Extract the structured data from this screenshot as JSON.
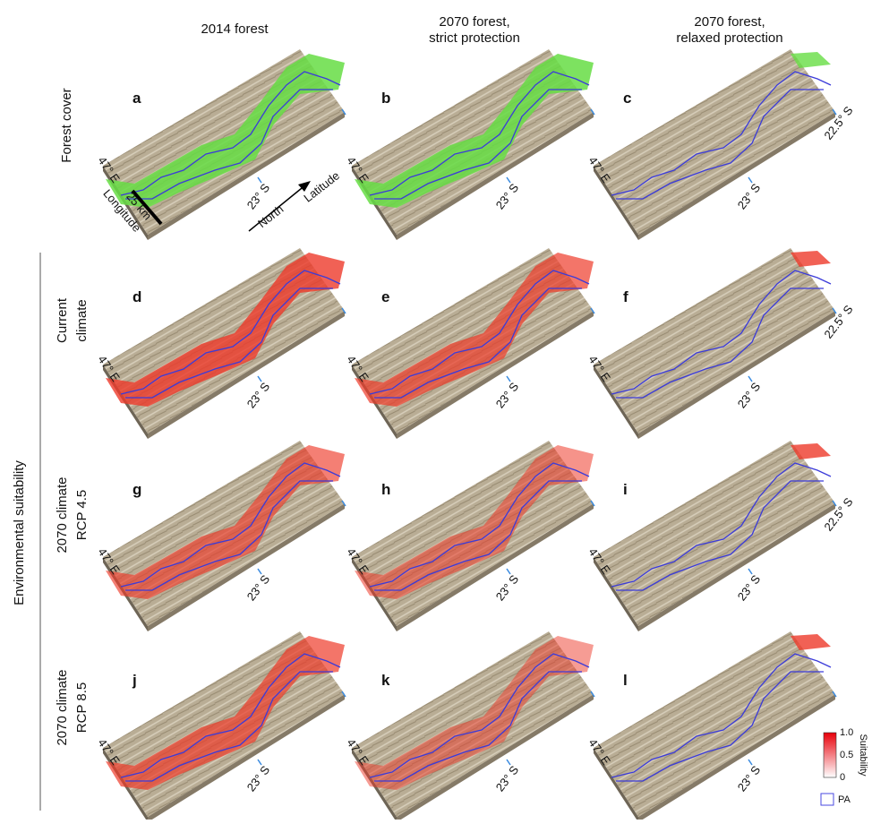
{
  "columns": [
    {
      "lines": [
        "2014 forest"
      ]
    },
    {
      "lines": [
        "2070 forest,",
        "strict protection"
      ]
    },
    {
      "lines": [
        "2070 forest,",
        "relaxed protection"
      ]
    }
  ],
  "rows": [
    {
      "lines": [
        "Forest cover"
      ]
    },
    {
      "lines": [
        "Current",
        "climate"
      ]
    },
    {
      "lines": [
        "2070 climate",
        "RCP 4.5"
      ]
    },
    {
      "lines": [
        "2070 climate",
        "RCP 8.5"
      ]
    }
  ],
  "group_label": "Environmental suitability",
  "panels": [
    {
      "letter": "a",
      "longitude": "47° E",
      "latitude": "23° S"
    },
    {
      "letter": "b",
      "longitude": "47° E",
      "latitude": "23° S"
    },
    {
      "letter": "c",
      "longitude": "47° E",
      "latitude": "23° S",
      "latitude_right": "22.5° S"
    },
    {
      "letter": "d",
      "longitude": "47° E",
      "latitude": "23° S"
    },
    {
      "letter": "e",
      "longitude": "47° E",
      "latitude": "23° S"
    },
    {
      "letter": "f",
      "longitude": "47° E",
      "latitude": "23° S",
      "latitude_right": "22.5° S"
    },
    {
      "letter": "g",
      "longitude": "47° E",
      "latitude": "23° S"
    },
    {
      "letter": "h",
      "longitude": "47° E",
      "latitude": "23° S"
    },
    {
      "letter": "i",
      "longitude": "47° E",
      "latitude": "23° S",
      "latitude_right": "22.5° S"
    },
    {
      "letter": "j",
      "longitude": "47° E",
      "latitude": "23° S"
    },
    {
      "letter": "k",
      "longitude": "47° E",
      "latitude": "23° S"
    },
    {
      "letter": "l",
      "longitude": "47° E",
      "latitude": "23° S"
    }
  ],
  "scale": {
    "distance": "25 km",
    "longitude": "Longitude",
    "north": "North",
    "latitude": "Latitude"
  },
  "legend": {
    "title": "Suitability",
    "ticks": [
      "1.0",
      "0.5",
      "0"
    ],
    "pa": "PA"
  }
}
